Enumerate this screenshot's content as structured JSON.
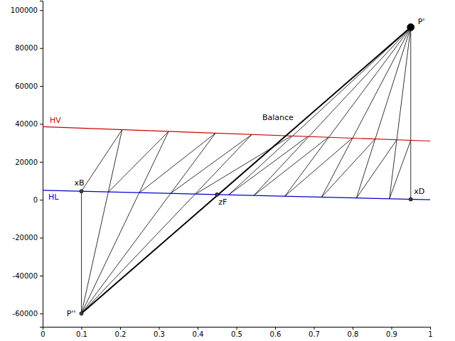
{
  "chart_data": {
    "type": "line",
    "grid": false,
    "marker": "circle",
    "xlim": [
      0,
      1
    ],
    "xticks": [
      0,
      0.1,
      0.2,
      0.3,
      0.4,
      0.5,
      0.6,
      0.7,
      0.8,
      0.9,
      1
    ],
    "ylim": [
      -67000,
      105000
    ],
    "yticks": [
      -60000,
      -40000,
      -20000,
      0,
      20000,
      40000,
      60000,
      80000,
      100000
    ],
    "series": [
      {
        "name": "HV",
        "color": "#cc0000",
        "x": [
          0,
          1
        ],
        "values": [
          38500,
          31000
        ]
      },
      {
        "name": "HL",
        "color": "#0000cc",
        "x": [
          0,
          1
        ],
        "values": [
          5000,
          0
        ]
      }
    ],
    "balance": {
      "label": "Balance",
      "x": [
        0.1,
        0.95
      ],
      "values": [
        -60000,
        91000
      ]
    },
    "points": [
      {
        "label": "P'",
        "x": 0.95,
        "y": 91000
      },
      {
        "label": "P''",
        "x": 0.1,
        "y": -60000
      },
      {
        "label": "xB",
        "x": 0.1,
        "y": 4500
      },
      {
        "label": "zF",
        "x": 0.45,
        "y": 2750
      },
      {
        "label": "xD",
        "x": 0.95,
        "y": 250
      }
    ],
    "segments": [
      {
        "x": [
          0.1,
          0.205
        ],
        "values": [
          4500,
          36960
        ]
      },
      {
        "x": [
          0.1,
          0.205
        ],
        "values": [
          -60000,
          36960
        ]
      },
      {
        "x": [
          0.17,
          0.325
        ],
        "values": [
          4150,
          36060
        ]
      },
      {
        "x": [
          0.1,
          0.325
        ],
        "values": [
          -60000,
          36060
        ]
      },
      {
        "x": [
          0.25,
          0.446
        ],
        "values": [
          3750,
          35155
        ]
      },
      {
        "x": [
          0.1,
          0.446
        ],
        "values": [
          -60000,
          35155
        ]
      },
      {
        "x": [
          0.33,
          0.54
        ],
        "values": [
          3350,
          34450
        ]
      },
      {
        "x": [
          0.1,
          0.54
        ],
        "values": [
          -60000,
          34450
        ]
      },
      {
        "x": [
          0.395,
          0.642
        ],
        "values": [
          3025,
          33685
        ]
      },
      {
        "x": [
          0.95,
          0.48
        ],
        "values": [
          91000,
          2600
        ]
      },
      {
        "x": [
          0.48,
          0.684
        ],
        "values": [
          2600,
          33370
        ]
      },
      {
        "x": [
          0.95,
          0.545
        ],
        "values": [
          91000,
          2275
        ]
      },
      {
        "x": [
          0.545,
          0.737
        ],
        "values": [
          2275,
          32973
        ]
      },
      {
        "x": [
          0.95,
          0.625
        ],
        "values": [
          91000,
          1875
        ]
      },
      {
        "x": [
          0.625,
          0.799
        ],
        "values": [
          1875,
          32508
        ]
      },
      {
        "x": [
          0.95,
          0.72
        ],
        "values": [
          91000,
          1400
        ]
      },
      {
        "x": [
          0.72,
          0.858
        ],
        "values": [
          1400,
          32065
        ]
      },
      {
        "x": [
          0.95,
          0.81
        ],
        "values": [
          91000,
          950
        ]
      },
      {
        "x": [
          0.81,
          0.914
        ],
        "values": [
          950,
          31645
        ]
      },
      {
        "x": [
          0.95,
          0.895
        ],
        "values": [
          91000,
          525
        ]
      },
      {
        "x": [
          0.895,
          0.95
        ],
        "values": [
          525,
          31375
        ]
      },
      {
        "x": [
          0.1,
          0.1
        ],
        "values": [
          4500,
          -60000
        ]
      },
      {
        "x": [
          0.95,
          0.95
        ],
        "values": [
          250,
          91000
        ]
      }
    ]
  }
}
